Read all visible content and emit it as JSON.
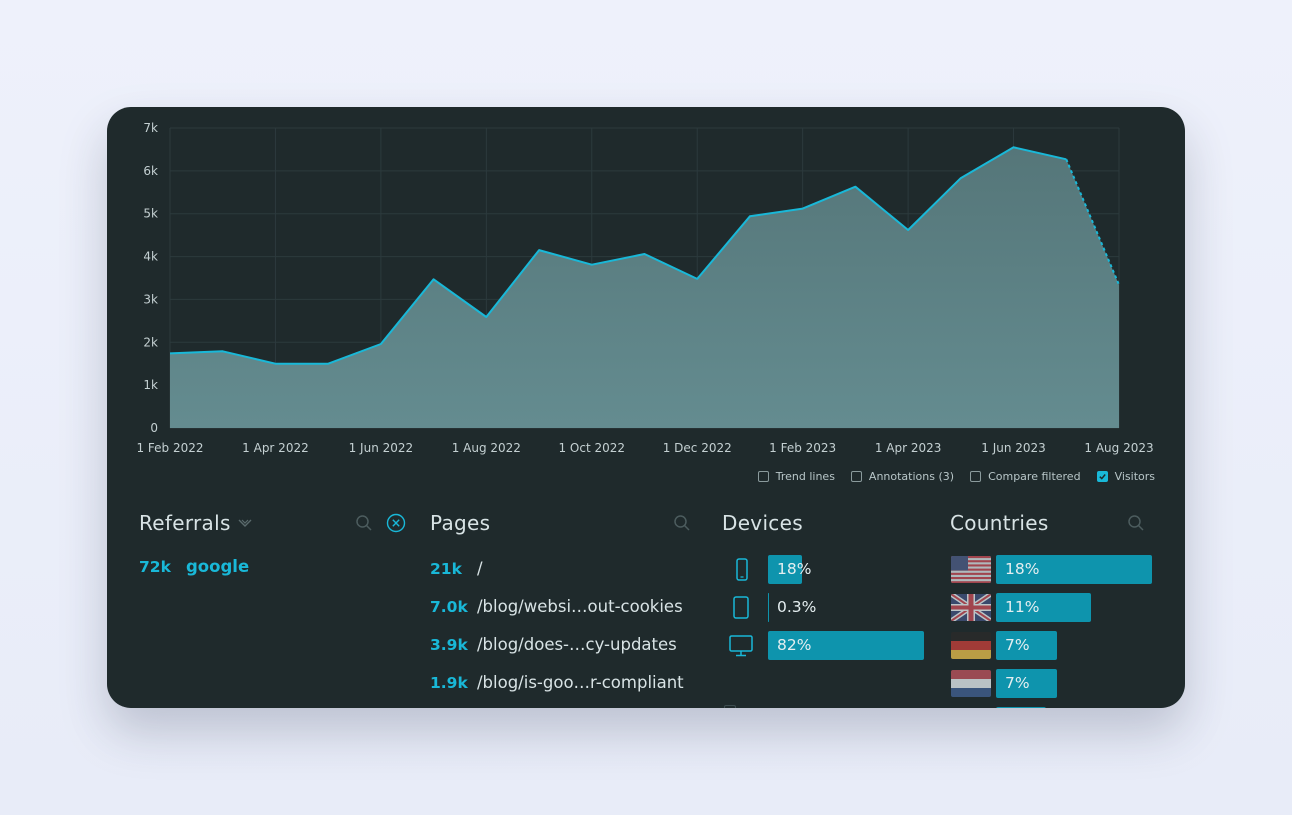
{
  "colors": {
    "accent": "#19b8d8",
    "bar": "#0e94ad",
    "area": "#5f8588",
    "card_bg": "#1f2a2c"
  },
  "chart_data": {
    "type": "area",
    "x": [
      "1 Feb 2022",
      "1 Mar 2022",
      "1 Apr 2022",
      "1 May 2022",
      "1 Jun 2022",
      "1 Jul 2022",
      "1 Aug 2022",
      "1 Sep 2022",
      "1 Oct 2022",
      "1 Nov 2022",
      "1 Dec 2022",
      "1 Jan 2023",
      "1 Feb 2023",
      "1 Mar 2023",
      "1 Apr 2023",
      "1 May 2023",
      "1 Jun 2023",
      "1 Jul 2023",
      "1 Aug 2023"
    ],
    "series": [
      {
        "values": [
          1740,
          1790,
          1500,
          1500,
          1960,
          3470,
          2590,
          4150,
          3810,
          4060,
          3480,
          4940,
          5120,
          5630,
          4620,
          5830,
          6550,
          6270,
          3340
        ],
        "last_segment_dashed": true
      }
    ],
    "ylim": [
      0,
      7000
    ],
    "yticks": [
      "0",
      "1k",
      "2k",
      "3k",
      "4k",
      "5k",
      "6k",
      "7k"
    ],
    "xticks": [
      "1 Feb 2022",
      "1 Apr 2022",
      "1 Jun 2022",
      "1 Aug 2022",
      "1 Oct 2022",
      "1 Dec 2022",
      "1 Feb 2023",
      "1 Apr 2023",
      "1 Jun 2023",
      "1 Aug 2023"
    ],
    "grid": true
  },
  "legend": {
    "trend_lines": {
      "label": "Trend lines",
      "checked": false
    },
    "annotations": {
      "label": "Annotations (3)",
      "checked": false
    },
    "compare_filtered": {
      "label": "Compare filtered",
      "checked": false
    },
    "visitors": {
      "label": "Visitors",
      "checked": true
    }
  },
  "referrals": {
    "title": "Referrals",
    "rows": [
      {
        "count": "72k",
        "label": "google"
      }
    ]
  },
  "pages": {
    "title": "Pages",
    "rows": [
      {
        "count": "21k",
        "path": "/"
      },
      {
        "count": "7.0k",
        "path": "/blog/websi…out-cookies"
      },
      {
        "count": "3.9k",
        "path": "/blog/does-…cy-updates"
      },
      {
        "count": "1.9k",
        "path": "/blog/is-goo…r-compliant"
      }
    ]
  },
  "devices": {
    "title": "Devices",
    "rows": [
      {
        "icon": "smartphone-icon",
        "label": "18%",
        "value": 0.18
      },
      {
        "icon": "tablet-icon",
        "label": "0.3%",
        "value": 0.003
      },
      {
        "icon": "desktop-icon",
        "label": "82%",
        "value": 0.82
      }
    ]
  },
  "countries": {
    "title": "Countries",
    "rows": [
      {
        "flag": "us-flag",
        "label": "18%",
        "value": 0.18
      },
      {
        "flag": "gb-flag",
        "label": "11%",
        "value": 0.11
      },
      {
        "flag": "de-flag",
        "label": "7%",
        "value": 0.07
      },
      {
        "flag": "nl-flag",
        "label": "7%",
        "value": 0.07
      }
    ]
  }
}
